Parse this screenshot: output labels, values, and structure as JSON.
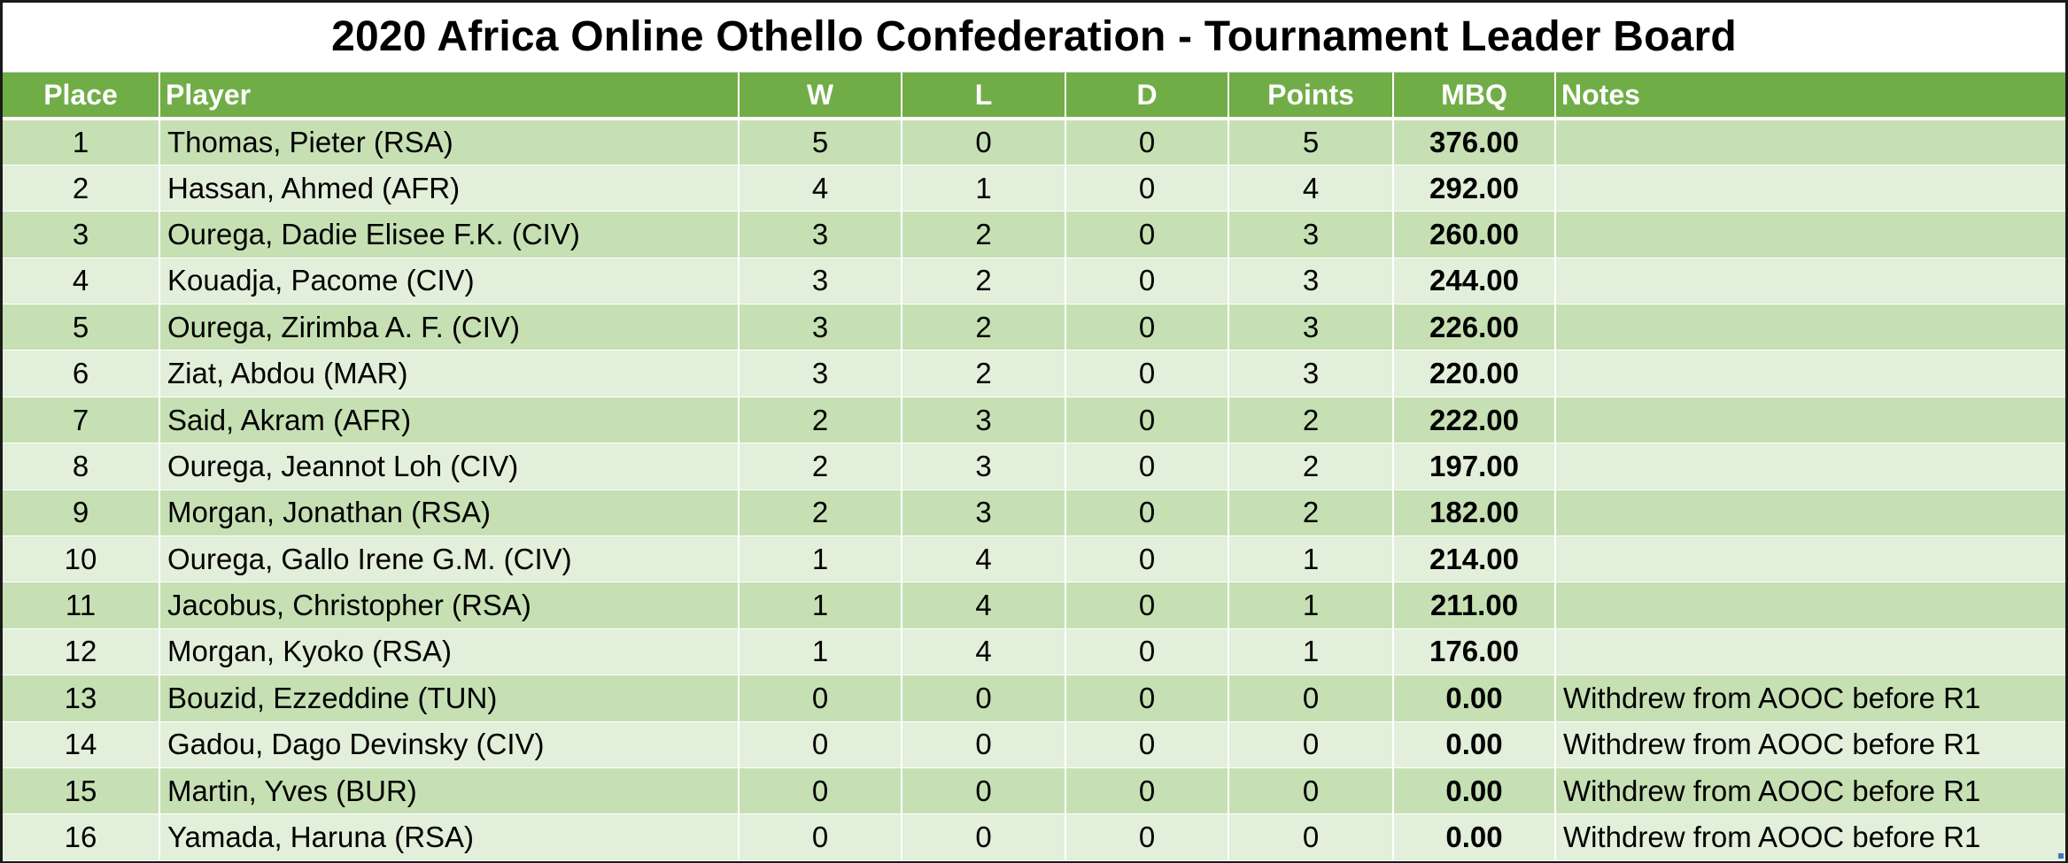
{
  "title": "2020 Africa Online Othello Confederation - Tournament Leader Board",
  "columns": {
    "place": "Place",
    "player": "Player",
    "w": "W",
    "l": "L",
    "d": "D",
    "points": "Points",
    "mbq": "MBQ",
    "notes": "Notes"
  },
  "rows": [
    {
      "place": "1",
      "player": "Thomas, Pieter (RSA)",
      "w": "5",
      "l": "0",
      "d": "0",
      "points": "5",
      "mbq": "376.00",
      "notes": ""
    },
    {
      "place": "2",
      "player": "Hassan, Ahmed (AFR)",
      "w": "4",
      "l": "1",
      "d": "0",
      "points": "4",
      "mbq": "292.00",
      "notes": ""
    },
    {
      "place": "3",
      "player": "Ourega, Dadie Elisee F.K. (CIV)",
      "w": "3",
      "l": "2",
      "d": "0",
      "points": "3",
      "mbq": "260.00",
      "notes": ""
    },
    {
      "place": "4",
      "player": "Kouadja, Pacome (CIV)",
      "w": "3",
      "l": "2",
      "d": "0",
      "points": "3",
      "mbq": "244.00",
      "notes": ""
    },
    {
      "place": "5",
      "player": "Ourega, Zirimba A. F. (CIV)",
      "w": "3",
      "l": "2",
      "d": "0",
      "points": "3",
      "mbq": "226.00",
      "notes": ""
    },
    {
      "place": "6",
      "player": "Ziat, Abdou (MAR)",
      "w": "3",
      "l": "2",
      "d": "0",
      "points": "3",
      "mbq": "220.00",
      "notes": ""
    },
    {
      "place": "7",
      "player": "Said, Akram (AFR)",
      "w": "2",
      "l": "3",
      "d": "0",
      "points": "2",
      "mbq": "222.00",
      "notes": ""
    },
    {
      "place": "8",
      "player": "Ourega, Jeannot Loh (CIV)",
      "w": "2",
      "l": "3",
      "d": "0",
      "points": "2",
      "mbq": "197.00",
      "notes": ""
    },
    {
      "place": "9",
      "player": "Morgan, Jonathan (RSA)",
      "w": "2",
      "l": "3",
      "d": "0",
      "points": "2",
      "mbq": "182.00",
      "notes": ""
    },
    {
      "place": "10",
      "player": "Ourega, Gallo Irene G.M. (CIV)",
      "w": "1",
      "l": "4",
      "d": "0",
      "points": "1",
      "mbq": "214.00",
      "notes": ""
    },
    {
      "place": "11",
      "player": "Jacobus, Christopher (RSA)",
      "w": "1",
      "l": "4",
      "d": "0",
      "points": "1",
      "mbq": "211.00",
      "notes": ""
    },
    {
      "place": "12",
      "player": "Morgan, Kyoko (RSA)",
      "w": "1",
      "l": "4",
      "d": "0",
      "points": "1",
      "mbq": "176.00",
      "notes": ""
    },
    {
      "place": "13",
      "player": "Bouzid, Ezzeddine (TUN)",
      "w": "0",
      "l": "0",
      "d": "0",
      "points": "0",
      "mbq": "0.00",
      "notes": "Withdrew from AOOC before R1"
    },
    {
      "place": "14",
      "player": "Gadou, Dago Devinsky (CIV)",
      "w": "0",
      "l": "0",
      "d": "0",
      "points": "0",
      "mbq": "0.00",
      "notes": "Withdrew from AOOC before R1"
    },
    {
      "place": "15",
      "player": "Martin, Yves (BUR)",
      "w": "0",
      "l": "0",
      "d": "0",
      "points": "0",
      "mbq": "0.00",
      "notes": "Withdrew from AOOC before R1"
    },
    {
      "place": "16",
      "player": "Yamada, Haruna (RSA)",
      "w": "0",
      "l": "0",
      "d": "0",
      "points": "0",
      "mbq": "0.00",
      "notes": "Withdrew from AOOC before R1"
    }
  ],
  "colors": {
    "header_bg": "#70ad47",
    "header_text": "#ffffff",
    "row_odd": "#c6e0b4",
    "row_even": "#e2efda"
  }
}
